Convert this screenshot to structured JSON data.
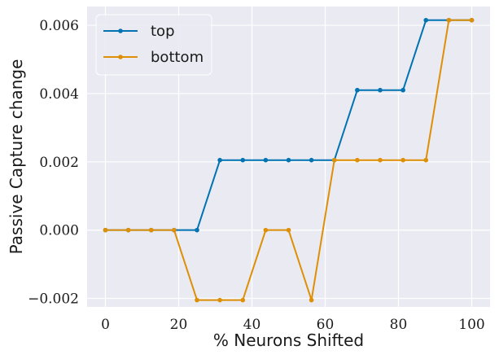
{
  "chart_data": {
    "type": "line",
    "title": "",
    "xlabel": "% Neurons Shifted",
    "ylabel": "Passive Capture change",
    "xlim": [
      -5,
      105
    ],
    "ylim": [
      -0.00225,
      0.00655
    ],
    "xticks": [
      0,
      20,
      40,
      60,
      80,
      100
    ],
    "xtick_labels": [
      "0",
      "20",
      "40",
      "60",
      "80",
      "100"
    ],
    "yticks": [
      -0.002,
      0.0,
      0.002,
      0.004,
      0.006
    ],
    "ytick_labels": [
      "−0.002",
      "0.000",
      "0.002",
      "0.004",
      "0.006"
    ],
    "grid": true,
    "legend_position": "top-left",
    "x": [
      0,
      6.25,
      12.5,
      18.75,
      25,
      31.25,
      37.5,
      43.75,
      50,
      56.25,
      62.5,
      68.75,
      75,
      81.25,
      87.5,
      93.75,
      100
    ],
    "series": [
      {
        "name": "top",
        "color": "#0173b2",
        "values": [
          0,
          0,
          0,
          0,
          0,
          0.00205,
          0.00205,
          0.00205,
          0.00205,
          0.00205,
          0.00205,
          0.0041,
          0.0041,
          0.0041,
          0.00615,
          0.00615,
          0.00615
        ]
      },
      {
        "name": "bottom",
        "color": "#de8f05",
        "values": [
          0,
          0,
          0,
          0,
          -0.00205,
          -0.00205,
          -0.00205,
          0,
          0,
          -0.00205,
          0.00205,
          0.00205,
          0.00205,
          0.00205,
          0.00205,
          0.00615,
          0.00615
        ]
      }
    ]
  }
}
